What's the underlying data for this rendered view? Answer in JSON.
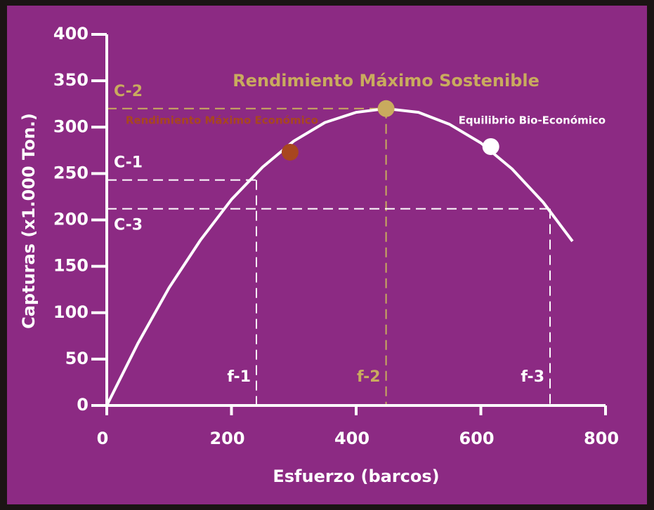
{
  "chart_data": {
    "type": "line",
    "x_label": "Esfuerzo (barcos)",
    "y_label": "Capturas (x1.000 Ton.)",
    "xlim": [
      0,
      800
    ],
    "ylim": [
      0,
      400
    ],
    "xticks": [
      0,
      200,
      400,
      600,
      800
    ],
    "yticks": [
      0,
      50,
      100,
      150,
      200,
      250,
      300,
      350,
      400
    ],
    "series": [
      {
        "color": "#ffffff",
        "x": [
          0,
          50,
          100,
          150,
          200,
          250,
          300,
          350,
          400,
          448,
          500,
          550,
          600,
          650,
          700,
          747
        ],
        "values": [
          0,
          67,
          127,
          178,
          222,
          257,
          285,
          305,
          316,
          320,
          316,
          303,
          283,
          255,
          219,
          177
        ]
      }
    ],
    "reference_lines": [
      {
        "x": 240,
        "y": 243,
        "y_label": "C-1",
        "x_label": "f-1",
        "color": "#ffffff"
      },
      {
        "x": 448,
        "y": 320,
        "y_label": "C-2",
        "x_label": "f-2",
        "color": "#c9ab5e"
      },
      {
        "x": 711,
        "y": 212,
        "y_label": "C-3",
        "x_label": "f-3",
        "color": "#ffffff"
      }
    ],
    "points": [
      {
        "name": "Rendimiento Máximo Económico",
        "x": 294,
        "y": 273,
        "color": "#a8461f"
      },
      {
        "name": "Rendimiento Máximo Sostenible",
        "x": 448,
        "y": 320,
        "color": "#c9ab5e"
      },
      {
        "name": "Equilibrio Bio-Económico",
        "x": 616,
        "y": 279,
        "color": "#ffffff"
      }
    ]
  }
}
